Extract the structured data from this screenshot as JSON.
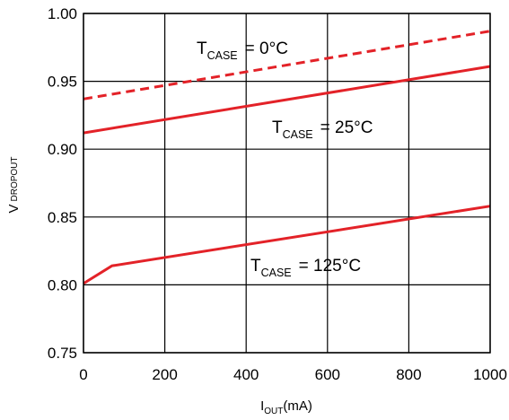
{
  "chart_data": {
    "type": "line",
    "xlabel": {
      "main": "I",
      "sub": "OUT",
      "suffix": "(mA)"
    },
    "ylabel": {
      "main": "V",
      "sub": "DROPOUT"
    },
    "xlim": [
      0,
      1000
    ],
    "ylim": [
      0.75,
      1.0
    ],
    "grid": true,
    "x_ticks": [
      0,
      200,
      400,
      600,
      800,
      1000
    ],
    "y_ticks": [
      0.75,
      0.8,
      0.85,
      0.9,
      0.95,
      1.0
    ],
    "x_tick_labels": [
      "0",
      "200",
      "400",
      "600",
      "800",
      "1000"
    ],
    "y_tick_labels": [
      "0.75",
      "0.80",
      "0.85",
      "0.90",
      "0.95",
      "1.00"
    ],
    "series": [
      {
        "label": {
          "main": "T",
          "sub": "CASE",
          "tail": "=  0°C"
        },
        "style": "dashed",
        "color": "#e32228",
        "x": [
          0,
          1000
        ],
        "y": [
          0.937,
          0.987
        ]
      },
      {
        "label": {
          "main": "T",
          "sub": "CASE",
          "tail": "=  25°C"
        },
        "style": "solid",
        "color": "#e32228",
        "x": [
          0,
          1000
        ],
        "y": [
          0.912,
          0.961
        ]
      },
      {
        "label": {
          "main": "T",
          "sub": "CASE",
          "tail": "=  125°C"
        },
        "style": "solid",
        "color": "#e32228",
        "x": [
          0,
          70,
          1000
        ],
        "y": [
          0.801,
          0.814,
          0.858
        ]
      }
    ]
  }
}
